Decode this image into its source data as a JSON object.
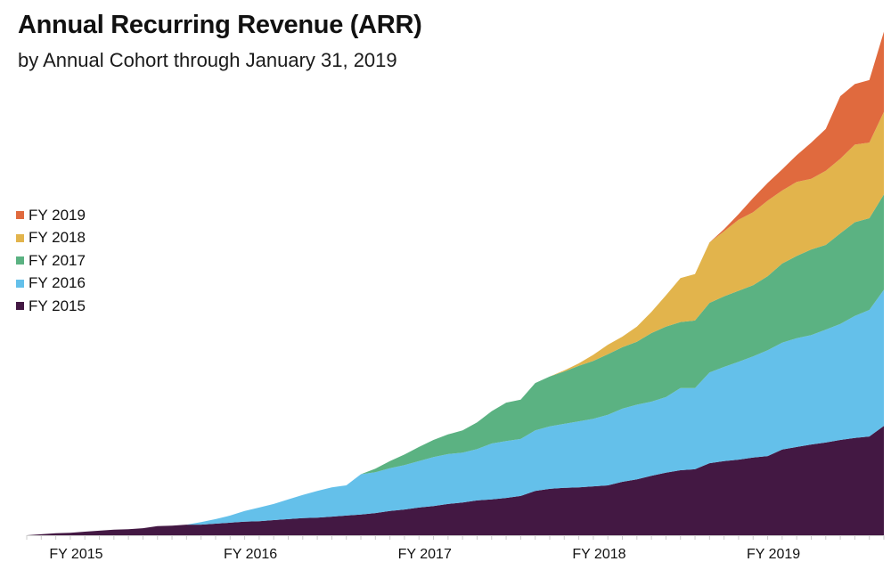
{
  "chart_data": {
    "type": "area",
    "stacked": true,
    "title": "Annual Recurring Revenue (ARR)",
    "subtitle": "by Annual Cohort through January 31, 2019",
    "xlabel": "",
    "ylabel": "",
    "ylim": [
      0,
      100
    ],
    "grid": false,
    "y_axis_shown": false,
    "legend_placement": "left",
    "x_tick_labels": [
      "FY 2015",
      "FY 2016",
      "FY 2017",
      "FY 2018",
      "FY 2019"
    ],
    "x": [
      "2014-02",
      "2014-03",
      "2014-04",
      "2014-05",
      "2014-06",
      "2014-07",
      "2014-08",
      "2014-09",
      "2014-10",
      "2014-11",
      "2014-12",
      "2015-01",
      "2015-02",
      "2015-03",
      "2015-04",
      "2015-05",
      "2015-06",
      "2015-07",
      "2015-08",
      "2015-09",
      "2015-10",
      "2015-11",
      "2015-12",
      "2016-01",
      "2016-02",
      "2016-03",
      "2016-04",
      "2016-05",
      "2016-06",
      "2016-07",
      "2016-08",
      "2016-09",
      "2016-10",
      "2016-11",
      "2016-12",
      "2017-01",
      "2017-02",
      "2017-03",
      "2017-04",
      "2017-05",
      "2017-06",
      "2017-07",
      "2017-08",
      "2017-09",
      "2017-10",
      "2017-11",
      "2017-12",
      "2018-01",
      "2018-02",
      "2018-03",
      "2018-04",
      "2018-05",
      "2018-06",
      "2018-07",
      "2018-08",
      "2018-09",
      "2018-10",
      "2018-11",
      "2018-12",
      "2019-01"
    ],
    "series": [
      {
        "name": "FY 2015",
        "color": "#431843",
        "values": [
          0,
          0.2,
          0.4,
          0.5,
          0.7,
          0.9,
          1.1,
          1.2,
          1.4,
          1.8,
          1.9,
          2.1,
          2.1,
          2.3,
          2.5,
          2.7,
          2.8,
          3.0,
          3.2,
          3.4,
          3.5,
          3.7,
          3.9,
          4.1,
          4.4,
          4.8,
          5.1,
          5.5,
          5.8,
          6.2,
          6.5,
          6.9,
          7.1,
          7.4,
          7.8,
          8.8,
          9.2,
          9.4,
          9.5,
          9.7,
          9.9,
          10.6,
          11.1,
          11.8,
          12.4,
          12.9,
          13.1,
          14.3,
          14.7,
          15.0,
          15.4,
          15.7,
          17.0,
          17.5,
          18.0,
          18.4,
          18.9,
          19.3,
          19.6,
          21.7
        ]
      },
      {
        "name": "FY 2016",
        "color": "#64c0ea",
        "values": [
          0,
          0,
          0,
          0,
          0,
          0,
          0,
          0,
          0,
          0,
          0,
          0,
          0.5,
          0.9,
          1.4,
          2.1,
          2.7,
          3.2,
          3.9,
          4.6,
          5.3,
          5.8,
          6.0,
          8.0,
          8.1,
          8.5,
          8.8,
          9.2,
          9.7,
          9.9,
          9.9,
          10.2,
          11.1,
          11.3,
          11.3,
          12.0,
          12.4,
          12.7,
          13.1,
          13.4,
          14.0,
          14.5,
          14.8,
          14.7,
          15.0,
          16.3,
          16.1,
          18.0,
          18.7,
          19.4,
          20.1,
          21.0,
          21.2,
          21.6,
          21.7,
          22.4,
          23.0,
          24.2,
          25.1,
          27.0
        ]
      },
      {
        "name": "FY 2017",
        "color": "#5bb282",
        "values": [
          0,
          0,
          0,
          0,
          0,
          0,
          0,
          0,
          0,
          0,
          0,
          0,
          0,
          0,
          0,
          0,
          0,
          0,
          0,
          0,
          0,
          0,
          0,
          0,
          0.7,
          1.4,
          2.1,
          2.8,
          3.4,
          3.9,
          4.4,
          5.3,
          6.4,
          7.6,
          7.8,
          9.4,
          9.9,
          10.4,
          11.0,
          11.5,
          12.0,
          12.2,
          12.5,
          13.6,
          14.0,
          13.1,
          13.4,
          13.8,
          14.0,
          14.1,
          14.1,
          14.7,
          15.7,
          16.3,
          17.0,
          16.8,
          18.0,
          18.6,
          18.2,
          18.9
        ]
      },
      {
        "name": "FY 2018",
        "color": "#e2b44c",
        "values": [
          0,
          0,
          0,
          0,
          0,
          0,
          0,
          0,
          0,
          0,
          0,
          0,
          0,
          0,
          0,
          0,
          0,
          0,
          0,
          0,
          0,
          0,
          0,
          0,
          0,
          0,
          0,
          0,
          0,
          0,
          0,
          0,
          0,
          0,
          0,
          0,
          0,
          0.2,
          0.5,
          1.2,
          1.9,
          2.1,
          3.0,
          4.2,
          6.2,
          8.7,
          9.2,
          12.0,
          12.9,
          14.1,
          14.5,
          15.0,
          14.5,
          14.7,
          14.0,
          14.7,
          14.8,
          15.4,
          15.0,
          16.4
        ]
      },
      {
        "name": "FY 2019",
        "color": "#e06a3e",
        "values": [
          0,
          0,
          0,
          0,
          0,
          0,
          0,
          0,
          0,
          0,
          0,
          0,
          0,
          0,
          0,
          0,
          0,
          0,
          0,
          0,
          0,
          0,
          0,
          0,
          0,
          0,
          0,
          0,
          0,
          0,
          0,
          0,
          0,
          0,
          0,
          0,
          0,
          0,
          0,
          0,
          0,
          0,
          0,
          0,
          0,
          0,
          0,
          0,
          0.4,
          1.1,
          2.8,
          3.5,
          4.2,
          5.3,
          7.2,
          8.3,
          12.4,
          12.0,
          12.4,
          15.9
        ]
      }
    ],
    "legend_order": [
      "FY 2019",
      "FY 2018",
      "FY 2017",
      "FY 2016",
      "FY 2015"
    ],
    "axis_color": "#cccccc"
  }
}
